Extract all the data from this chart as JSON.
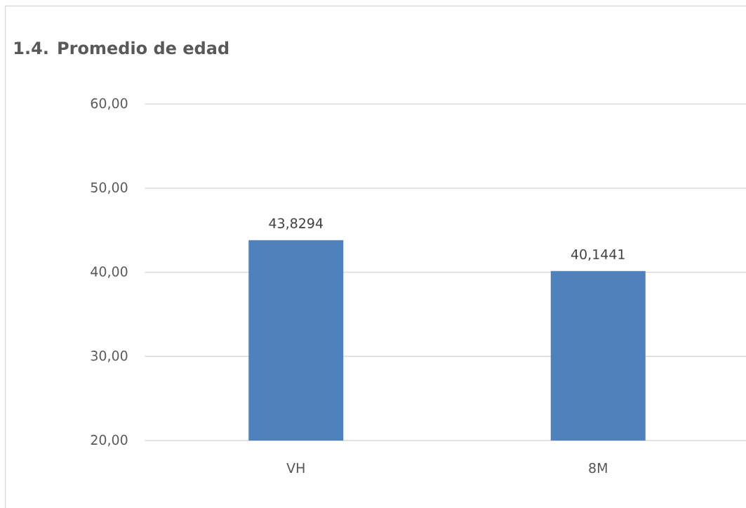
{
  "chart_data": {
    "type": "bar",
    "title": "1.4. Promedio de edad",
    "categories": [
      "VH",
      "8M"
    ],
    "values": [
      43.8294,
      40.1441
    ],
    "color": "#4f81bd",
    "ylim": [
      20,
      60
    ],
    "yticks": [
      {
        "value": 20,
        "label": "20,00"
      },
      {
        "value": 30,
        "label": "30,00"
      },
      {
        "value": 40,
        "label": "40,00"
      },
      {
        "value": 50,
        "label": "50,00"
      },
      {
        "value": 60,
        "label": "60,00"
      }
    ],
    "grid": "y",
    "value_labels": [
      "43,8294",
      "40,1441"
    ]
  }
}
